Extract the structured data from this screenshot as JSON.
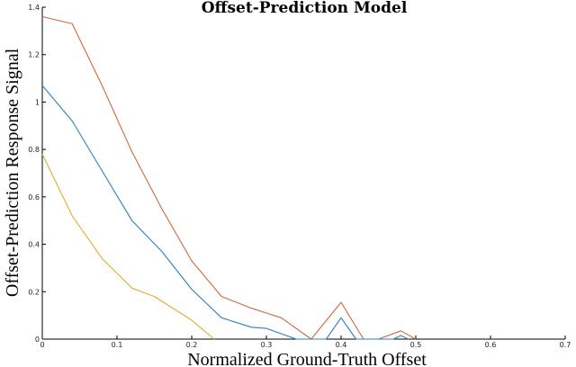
{
  "chart_data": {
    "type": "line",
    "title": "Offset-Prediction Model",
    "xlabel": "Normalized Ground-Truth Offset",
    "ylabel": "Offset-Prediction Response Signal",
    "xlim": [
      0,
      0.7
    ],
    "ylim": [
      0,
      1.4
    ],
    "xticks": [
      0,
      0.1,
      0.2,
      0.3,
      0.4,
      0.5,
      0.6,
      0.7
    ],
    "xtick_labels": [
      "0",
      "0.1",
      "0.2",
      "0.3",
      "0.4",
      "0.5",
      "0.6",
      "0.7"
    ],
    "yticks": [
      0,
      0.2,
      0.4,
      0.6,
      0.8,
      1,
      1.2,
      1.4
    ],
    "ytick_labels": [
      "0",
      "0.2",
      "0.4",
      "0.6",
      "0.8",
      "1",
      "1.2",
      "1.4"
    ],
    "grid": false,
    "series": [
      {
        "color": "#d0693a",
        "x": [
          0,
          0.04,
          0.08,
          0.12,
          0.16,
          0.2,
          0.24,
          0.28,
          0.3,
          0.32,
          0.36,
          0.4,
          0.43,
          0.45,
          0.48,
          0.5
        ],
        "y": [
          1.36,
          1.33,
          1.07,
          0.79,
          0.55,
          0.33,
          0.18,
          0.13,
          0.11,
          0.09,
          0.0,
          0.155,
          0.0,
          0.0,
          0.035,
          0.0
        ]
      },
      {
        "color": "#2b7fc4",
        "x": [
          0,
          0.04,
          0.08,
          0.12,
          0.16,
          0.2,
          0.24,
          0.28,
          0.3,
          0.34,
          0.38,
          0.4,
          0.42,
          0.47,
          0.48,
          0.49
        ],
        "y": [
          1.07,
          0.92,
          0.71,
          0.5,
          0.37,
          0.21,
          0.09,
          0.05,
          0.045,
          0.0,
          0.0,
          0.09,
          0.0,
          0.0,
          0.015,
          0.0
        ]
      },
      {
        "color": "#e9a833",
        "x": [
          0,
          0.04,
          0.08,
          0.12,
          0.15,
          0.17,
          0.2,
          0.23
        ],
        "y": [
          0.78,
          0.52,
          0.34,
          0.215,
          0.18,
          0.14,
          0.08,
          0.0
        ]
      }
    ]
  }
}
